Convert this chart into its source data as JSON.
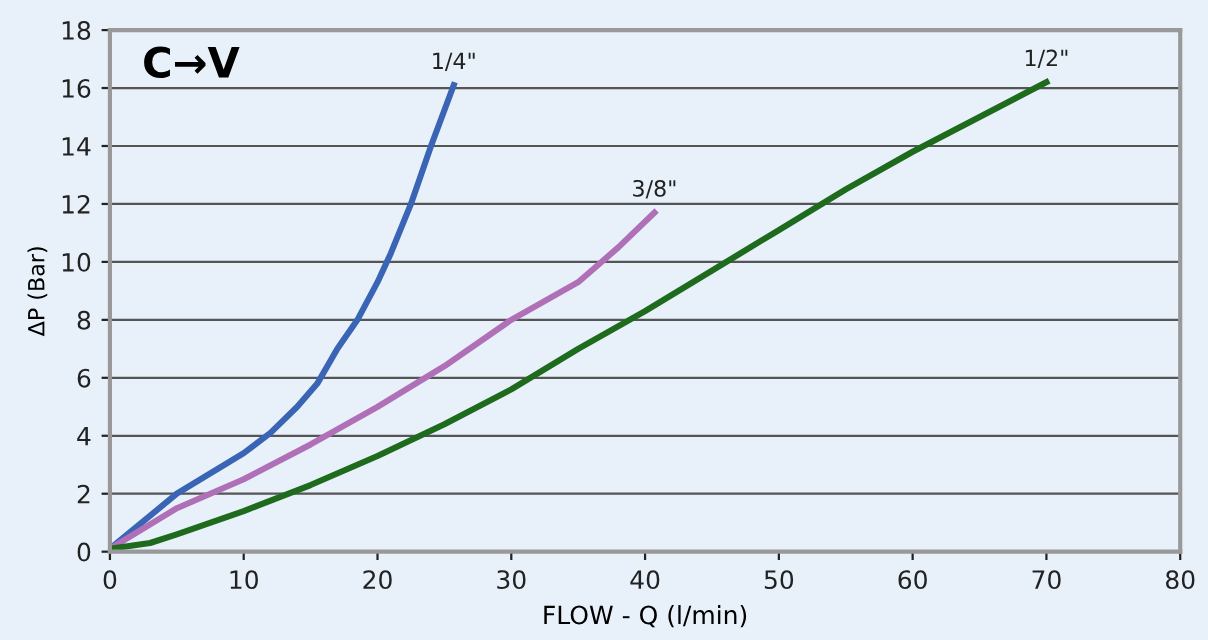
{
  "chart_data": {
    "type": "line",
    "xlabel": "FLOW - Q (l/min)",
    "ylabel": "ΔP (Bar)",
    "annotations": [
      "C→V"
    ],
    "xlim": [
      0,
      80
    ],
    "xticks": [
      0,
      10,
      20,
      30,
      40,
      50,
      60,
      70,
      80
    ],
    "ylim": [
      0,
      18
    ],
    "yticks": [
      0,
      2,
      4,
      6,
      8,
      10,
      12,
      14,
      16,
      18
    ],
    "grid": "y",
    "legend": false,
    "marker": "none",
    "line_style": "solid",
    "series": [
      {
        "name": "1/4\"",
        "color": "#3a65b5",
        "x": [
          0,
          5,
          10,
          12,
          14,
          15.5,
          17,
          18.5,
          20,
          21,
          22.5,
          24,
          25.7
        ],
        "values": [
          0.1,
          2,
          3.4,
          4.1,
          5,
          5.8,
          7,
          8,
          9.3,
          10.3,
          12,
          14,
          16.1
        ]
      },
      {
        "name": "3/8\"",
        "color": "#b070b8",
        "x": [
          0,
          5,
          10,
          15,
          20,
          25,
          30,
          35,
          38,
          40.7
        ],
        "values": [
          0.1,
          1.5,
          2.5,
          3.7,
          5,
          6.4,
          8,
          9.3,
          10.5,
          11.7
        ]
      },
      {
        "name": "1/2\"",
        "color": "#1e6b1e",
        "x": [
          0,
          3,
          5,
          10,
          15,
          20,
          25,
          30,
          35,
          40,
          45,
          50,
          55,
          60,
          65,
          70
        ],
        "values": [
          0.1,
          0.3,
          0.6,
          1.4,
          2.3,
          3.3,
          4.4,
          5.6,
          7,
          8.3,
          9.7,
          11.1,
          12.5,
          13.8,
          15,
          16.2
        ]
      }
    ]
  }
}
